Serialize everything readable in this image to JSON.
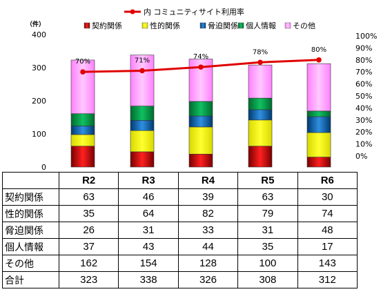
{
  "chart_data": {
    "type": "bar",
    "stacked": true,
    "categories": [
      "R2",
      "R3",
      "R4",
      "R5",
      "R6"
    ],
    "y_unit_label": "（件）",
    "ylim": [
      0,
      400
    ],
    "y_ticks": [
      0,
      100,
      200,
      300,
      400
    ],
    "y2lim": [
      0,
      1
    ],
    "y2_ticks": [
      "0%",
      "10%",
      "20%",
      "30%",
      "40%",
      "50%",
      "60%",
      "70%",
      "80%",
      "90%",
      "100%"
    ],
    "legend_top": "内 コミュニティサイト利用率",
    "series": [
      {
        "name": "契約関係",
        "values": [
          63,
          46,
          39,
          63,
          30
        ],
        "color": "#ff0000"
      },
      {
        "name": "性的関係",
        "values": [
          35,
          64,
          82,
          79,
          74
        ],
        "color": "#ffff00"
      },
      {
        "name": "脅迫関係",
        "values": [
          26,
          31,
          33,
          31,
          48
        ],
        "color": "#0070c0"
      },
      {
        "name": "個人情報",
        "values": [
          37,
          43,
          44,
          35,
          17
        ],
        "color": "#00b050"
      },
      {
        "name": "その他",
        "values": [
          162,
          154,
          128,
          100,
          143
        ],
        "color": "#ff99ff"
      }
    ],
    "line": {
      "name": "内 コミュニティサイト利用率",
      "values": [
        0.7,
        0.71,
        0.74,
        0.78,
        0.8
      ],
      "labels": [
        "70%",
        "71%",
        "74%",
        "78%",
        "80%"
      ],
      "color": "#e00000"
    },
    "grid": false,
    "legend_position": "top"
  },
  "table": {
    "headers": [
      "",
      "R2",
      "R3",
      "R4",
      "R5",
      "R6"
    ],
    "rows": [
      {
        "label": "契約関係",
        "values": [
          "63",
          "46",
          "39",
          "63",
          "30"
        ]
      },
      {
        "label": "性的関係",
        "values": [
          "35",
          "64",
          "82",
          "79",
          "74"
        ]
      },
      {
        "label": "脅迫関係",
        "values": [
          "26",
          "31",
          "33",
          "31",
          "48"
        ]
      },
      {
        "label": "個人情報",
        "values": [
          "37",
          "43",
          "44",
          "35",
          "17"
        ]
      },
      {
        "label": "その他",
        "values": [
          "162",
          "154",
          "128",
          "100",
          "143"
        ]
      },
      {
        "label": "合計",
        "values": [
          "323",
          "338",
          "326",
          "308",
          "312"
        ]
      }
    ]
  }
}
